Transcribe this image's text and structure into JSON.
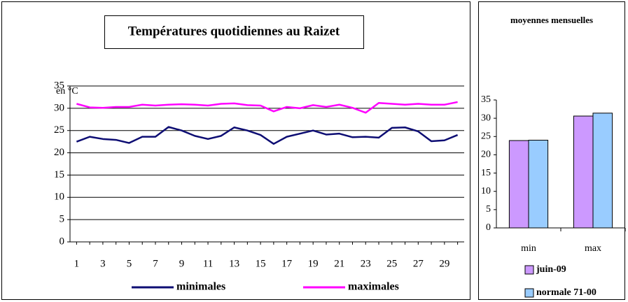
{
  "chart_data": [
    {
      "type": "line",
      "title": "Températures quotidiennes au Raizet",
      "ylabel": "en °C",
      "categories": [
        1,
        null,
        3,
        null,
        5,
        null,
        7,
        null,
        9,
        null,
        11,
        null,
        13,
        null,
        15,
        null,
        17,
        null,
        19,
        null,
        21,
        null,
        23,
        null,
        25,
        null,
        27,
        null,
        29,
        null
      ],
      "series": [
        {
          "name": "minimales",
          "color": "#0d0d73",
          "values": [
            22.5,
            23.6,
            23.1,
            22.9,
            22.2,
            23.6,
            23.6,
            25.8,
            25.0,
            23.8,
            23.1,
            23.8,
            25.7,
            25.0,
            24.0,
            22.0,
            23.6,
            24.3,
            25.0,
            24.1,
            24.3,
            23.5,
            23.6,
            23.4,
            25.6,
            25.7,
            24.8,
            22.6,
            22.8,
            24.0
          ]
        },
        {
          "name": "maximales",
          "color": "#ff00ff",
          "values": [
            31.0,
            30.2,
            30.1,
            30.3,
            30.3,
            30.8,
            30.6,
            30.8,
            30.9,
            30.8,
            30.6,
            31.0,
            31.1,
            30.7,
            30.6,
            29.3,
            30.3,
            30.0,
            30.7,
            30.3,
            30.8,
            30.1,
            29.0,
            31.2,
            31.0,
            30.8,
            31.0,
            30.8,
            30.8,
            31.4
          ]
        }
      ],
      "ylim": [
        0,
        35
      ],
      "yticks": [
        0,
        5,
        10,
        15,
        20,
        25,
        30,
        35
      ],
      "grid": true
    },
    {
      "type": "bar",
      "title": "moyennes mensuelles",
      "categories": [
        "min",
        "max"
      ],
      "series": [
        {
          "name": "juin-09",
          "color": "#cc99ff",
          "values": [
            23.9,
            30.6
          ]
        },
        {
          "name": "normale 71-00",
          "color": "#99ccff",
          "values": [
            24.0,
            31.4
          ]
        }
      ],
      "ylim": [
        0,
        35
      ],
      "yticks": [
        0,
        5,
        10,
        15,
        20,
        25,
        30,
        35
      ],
      "grid": false
    }
  ]
}
